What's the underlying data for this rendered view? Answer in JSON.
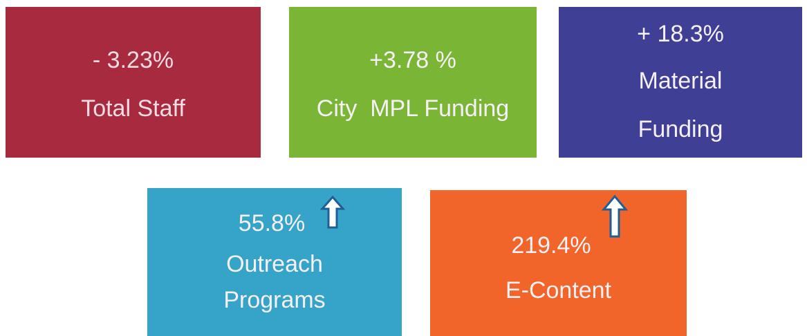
{
  "tiles": [
    {
      "value": "- 3.23%",
      "label": "Total Staff"
    },
    {
      "value": "+3.78 %",
      "label": "City  MPL Funding"
    },
    {
      "value": "+ 18.3%",
      "label": "Material Funding"
    },
    {
      "value": "55.8%",
      "label": "Outreach Programs"
    },
    {
      "value": "219.4%",
      "label": "E-Content"
    }
  ]
}
